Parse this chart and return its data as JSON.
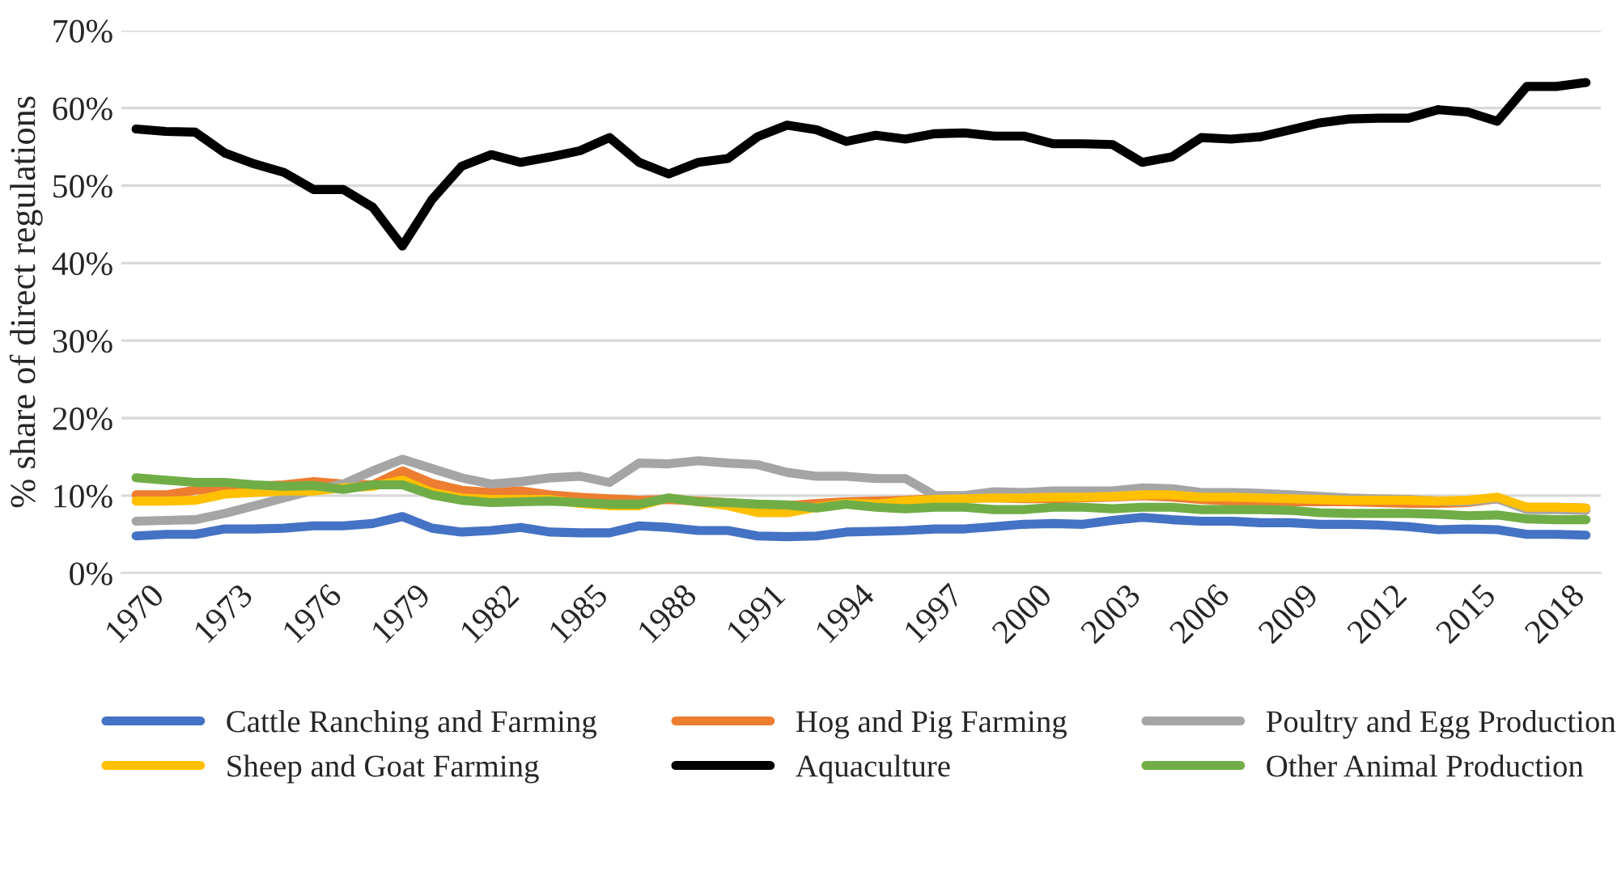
{
  "chart_data": {
    "type": "line",
    "ylabel": "% share of direct regulations",
    "x": [
      1970,
      1971,
      1972,
      1973,
      1974,
      1975,
      1976,
      1977,
      1978,
      1979,
      1980,
      1981,
      1982,
      1983,
      1984,
      1985,
      1986,
      1987,
      1988,
      1989,
      1990,
      1991,
      1992,
      1993,
      1994,
      1995,
      1996,
      1997,
      1998,
      1999,
      2000,
      2001,
      2002,
      2003,
      2004,
      2005,
      2006,
      2007,
      2008,
      2009,
      2010,
      2011,
      2012,
      2013,
      2014,
      2015,
      2016,
      2017,
      2018,
      2019
    ],
    "xlim": [
      1969.5,
      2019.5
    ],
    "xticks": [
      1970,
      1973,
      1976,
      1979,
      1982,
      1985,
      1988,
      1991,
      1994,
      1997,
      2000,
      2003,
      2006,
      2009,
      2012,
      2015,
      2018
    ],
    "ylim": [
      0,
      70
    ],
    "yticks": [
      {
        "value": 0,
        "label": "0%"
      },
      {
        "value": 10,
        "label": "10%"
      },
      {
        "value": 20,
        "label": "20%"
      },
      {
        "value": 30,
        "label": "30%"
      },
      {
        "value": 40,
        "label": "40%"
      },
      {
        "value": 50,
        "label": "50%"
      },
      {
        "value": 60,
        "label": "60%"
      },
      {
        "value": 70,
        "label": "70%"
      }
    ],
    "grid": "y",
    "legend": "bottom",
    "marker": "none",
    "line_style": "solid",
    "series": [
      {
        "name": "Cattle Ranching and Farming",
        "color": "#4472c4",
        "values": [
          4.8,
          5.0,
          5.0,
          5.7,
          5.7,
          5.8,
          6.1,
          6.1,
          6.4,
          7.3,
          5.8,
          5.3,
          5.5,
          5.9,
          5.3,
          5.2,
          5.2,
          6.1,
          5.9,
          5.5,
          5.5,
          4.8,
          4.7,
          4.8,
          5.3,
          5.4,
          5.5,
          5.7,
          5.7,
          6.0,
          6.3,
          6.4,
          6.3,
          6.8,
          7.2,
          6.9,
          6.7,
          6.7,
          6.5,
          6.5,
          6.3,
          6.3,
          6.2,
          6.0,
          5.6,
          5.7,
          5.6,
          5.0,
          5.0,
          4.9
        ]
      },
      {
        "name": "Hog and Pig Farming",
        "color": "#ed7d31",
        "values": [
          10.1,
          10.1,
          10.7,
          11.0,
          11.2,
          11.4,
          11.8,
          11.5,
          11.4,
          13.2,
          11.6,
          10.7,
          10.4,
          10.6,
          10.1,
          9.8,
          9.6,
          9.4,
          9.5,
          9.3,
          9.1,
          8.8,
          8.7,
          9.0,
          9.2,
          9.3,
          9.4,
          9.6,
          9.8,
          9.7,
          9.6,
          9.6,
          9.7,
          9.8,
          10.0,
          9.8,
          9.5,
          9.3,
          9.3,
          9.2,
          9.2,
          9.2,
          9.1,
          9.0,
          9.0,
          9.1,
          9.6,
          8.5,
          8.5,
          8.4
        ]
      },
      {
        "name": "Poultry and Egg Production",
        "color": "#a5a5a5",
        "values": [
          6.7,
          6.8,
          6.9,
          7.7,
          8.7,
          9.7,
          10.7,
          11.5,
          13.2,
          14.7,
          13.5,
          12.3,
          11.5,
          11.8,
          12.3,
          12.5,
          11.7,
          14.2,
          14.1,
          14.5,
          14.2,
          14.0,
          13.0,
          12.5,
          12.5,
          12.2,
          12.2,
          10.0,
          10.0,
          10.5,
          10.4,
          10.6,
          10.6,
          10.6,
          11.0,
          10.9,
          10.4,
          10.4,
          10.3,
          10.1,
          9.9,
          9.7,
          9.6,
          9.5,
          9.3,
          9.2,
          9.6,
          8.2,
          8.2,
          8.1
        ]
      },
      {
        "name": "Sheep and Goat Farming",
        "color": "#ffc000",
        "values": [
          9.3,
          9.3,
          9.4,
          10.2,
          10.4,
          10.6,
          10.6,
          11.0,
          11.2,
          12.0,
          10.4,
          9.7,
          9.5,
          9.5,
          9.5,
          9.0,
          8.7,
          8.7,
          9.7,
          9.2,
          8.7,
          7.8,
          7.8,
          8.5,
          9.0,
          8.9,
          9.3,
          9.5,
          9.6,
          9.7,
          9.7,
          9.8,
          9.8,
          9.9,
          10.1,
          10.1,
          9.8,
          9.8,
          9.7,
          9.6,
          9.5,
          9.4,
          9.4,
          9.4,
          9.3,
          9.4,
          9.8,
          8.5,
          8.5,
          8.4
        ]
      },
      {
        "name": "Aquaculture",
        "color": "#000000",
        "values": [
          57.3,
          57.0,
          56.9,
          54.2,
          52.8,
          51.7,
          49.5,
          49.5,
          47.2,
          42.2,
          48.2,
          52.5,
          54.0,
          53.0,
          53.7,
          54.5,
          56.2,
          53.0,
          51.5,
          53.0,
          53.5,
          56.3,
          57.8,
          57.2,
          55.7,
          56.5,
          56.0,
          56.7,
          56.8,
          56.4,
          56.4,
          55.4,
          55.4,
          55.3,
          53.0,
          53.7,
          56.2,
          56.0,
          56.3,
          57.2,
          58.1,
          58.6,
          58.7,
          58.7,
          59.8,
          59.5,
          58.3,
          62.8,
          62.8,
          63.3
        ]
      },
      {
        "name": "Other Animal Production",
        "color": "#70ad47",
        "values": [
          12.3,
          12.0,
          11.7,
          11.7,
          11.4,
          11.2,
          11.3,
          10.8,
          11.4,
          11.4,
          10.1,
          9.4,
          9.1,
          9.2,
          9.3,
          9.1,
          8.9,
          8.9,
          9.7,
          9.2,
          9.1,
          8.9,
          8.8,
          8.4,
          8.9,
          8.5,
          8.3,
          8.5,
          8.5,
          8.2,
          8.2,
          8.5,
          8.5,
          8.3,
          8.5,
          8.5,
          8.2,
          8.2,
          8.2,
          8.1,
          7.8,
          7.7,
          7.7,
          7.7,
          7.6,
          7.4,
          7.5,
          7.0,
          6.9,
          6.9
        ]
      }
    ]
  }
}
